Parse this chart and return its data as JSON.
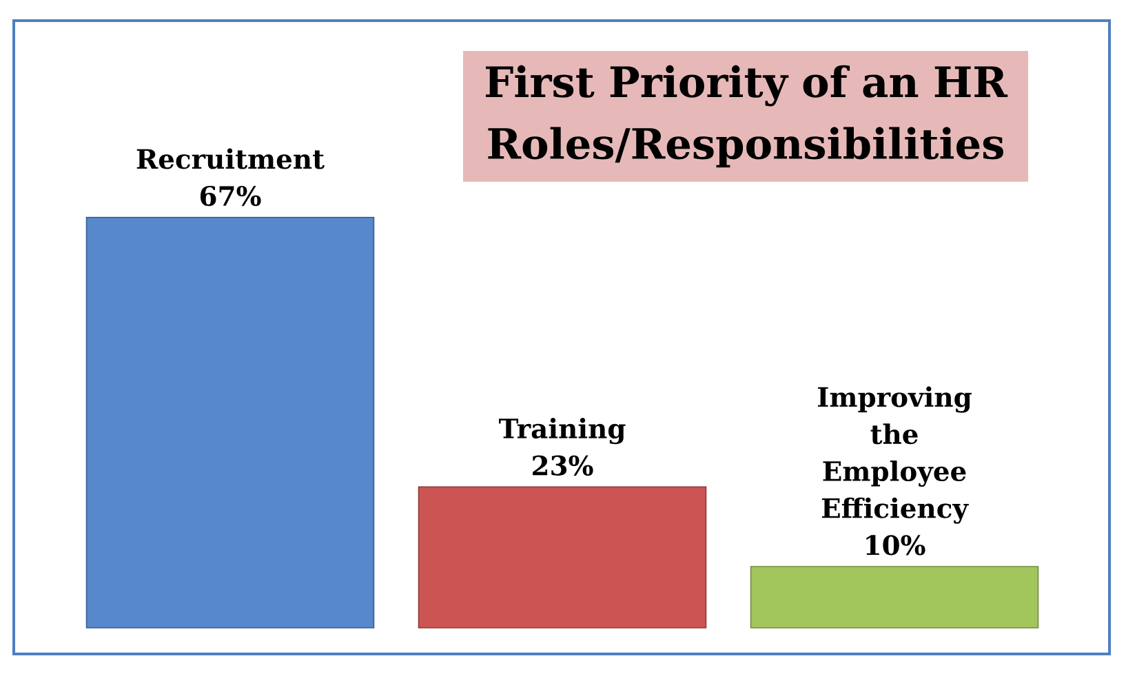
{
  "chart_data": {
    "type": "bar",
    "title": "First Priority of an HR Roles/Responsibilities",
    "categories": [
      "Recruitment",
      "Training",
      "Improving the Employee Efficiency"
    ],
    "values": [
      67,
      23,
      10
    ],
    "value_labels": [
      "67%",
      "23%",
      "10%"
    ],
    "colors": [
      "#5688cb",
      "#cc5452",
      "#a2c65c"
    ]
  }
}
